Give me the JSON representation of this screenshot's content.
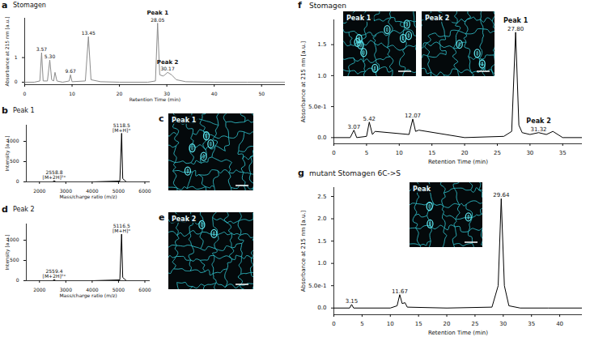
{
  "chart_data": [
    {
      "panel_label": "a",
      "type": "line",
      "title": "Stomagen",
      "xlabel": "Retention Time (min)",
      "ylabel": "Absorbance at 215 nm [a.u.]",
      "x": [
        0,
        2,
        3.2,
        3.57,
        3.9,
        4.8,
        5.3,
        5.7,
        6.1,
        6.4,
        6.8,
        8,
        9.4,
        9.67,
        10,
        12.8,
        13.45,
        14,
        16,
        20,
        26,
        27.6,
        28.05,
        28.5,
        29.2,
        29.6,
        30.17,
        31,
        32,
        34,
        40,
        47,
        55
      ],
      "values": [
        0,
        0,
        0.05,
        1.2,
        0.05,
        0.05,
        0.9,
        0.1,
        0.05,
        0.4,
        0.05,
        0,
        0.05,
        0.3,
        0.02,
        0.05,
        1.85,
        0.1,
        0.02,
        0,
        0,
        0.05,
        2.4,
        0.3,
        0.25,
        0.3,
        0.4,
        0.3,
        0.1,
        0.02,
        0,
        0,
        0
      ],
      "color": "#8c8c8c",
      "xlim": [
        0,
        55
      ],
      "xticks": [
        0,
        10,
        20,
        30,
        40,
        50
      ],
      "ylim": [
        -0.1,
        2.6
      ],
      "yticks": [
        0,
        1
      ],
      "annotations": [
        {
          "x": 3.57,
          "y": 1.2,
          "lines": [
            "3.57"
          ]
        },
        {
          "x": 5.3,
          "y": 0.9,
          "lines": [
            "5.30"
          ]
        },
        {
          "x": 9.67,
          "y": 0.3,
          "lines": [
            "9.67"
          ]
        },
        {
          "x": 13.45,
          "y": 1.85,
          "lines": [
            "13.45"
          ]
        },
        {
          "x": 28.05,
          "y": 2.4,
          "lines": [
            "28.05"
          ]
        },
        {
          "x": 30.17,
          "y": 0.4,
          "lines": [
            "30.17"
          ]
        }
      ],
      "peak_labels": [
        {
          "x": 28.05,
          "y": 2.4,
          "text": "Peak 1"
        },
        {
          "x": 30.17,
          "y": 0.4,
          "text": "Peak 2"
        }
      ]
    },
    {
      "panel_label": "b",
      "type": "line",
      "title": "Peak 1",
      "xlabel": "Mass/charge ratio (m/z)",
      "ylabel": "Intensity [a.u.]",
      "x": [
        1500,
        2500,
        2558.8,
        2620,
        4000,
        5050,
        5118.5,
        5160,
        5300,
        6000
      ],
      "values": [
        0,
        0,
        30,
        0,
        0,
        20,
        1200,
        80,
        0,
        0
      ],
      "color": "#000000",
      "xlim": [
        1500,
        6200
      ],
      "xticks": [
        2000,
        3000,
        4000,
        5000,
        6000
      ],
      "ylim": [
        0,
        1400
      ],
      "yticks": [
        0,
        500,
        1000
      ],
      "annotations": [
        {
          "x": 5118.5,
          "y": 1200,
          "lines": [
            "5118.5",
            "[M+H]⁺"
          ]
        },
        {
          "x": 2558.8,
          "y": 30,
          "lines": [
            "2558.8",
            "[M+2H]²⁺"
          ]
        }
      ]
    },
    {
      "panel_label": "c",
      "type": "image",
      "title": "Peak 1"
    },
    {
      "panel_label": "d",
      "type": "line",
      "title": "Peak 2",
      "xlabel": "Mass/charge ratio (m/z)",
      "ylabel": "Intensity [a.u.]",
      "x": [
        1500,
        2500,
        2559.4,
        2620,
        4000,
        5050,
        5116.5,
        5160,
        5300,
        6000
      ],
      "values": [
        0,
        0,
        25,
        0,
        0,
        20,
        1150,
        80,
        0,
        0
      ],
      "color": "#000000",
      "xlim": [
        1500,
        6200
      ],
      "xticks": [
        2000,
        3000,
        4000,
        5000,
        6000
      ],
      "ylim": [
        0,
        1400
      ],
      "yticks": [
        0,
        500,
        1000
      ],
      "annotations": [
        {
          "x": 5116.5,
          "y": 1150,
          "lines": [
            "5116.5",
            "[M+H]⁺"
          ]
        },
        {
          "x": 2559.4,
          "y": 25,
          "lines": [
            "2559.4",
            "[M+2H]²⁺"
          ]
        }
      ]
    },
    {
      "panel_label": "e",
      "type": "image",
      "title": "Peak 2"
    },
    {
      "panel_label": "f",
      "type": "line",
      "title": "Stomagen",
      "xlabel": "Retention Time (min)",
      "ylabel": "Absorbance at 215 nm [a.u.]",
      "x": [
        0,
        2.5,
        3.07,
        3.5,
        5,
        5.42,
        5.9,
        6.3,
        11.5,
        12.07,
        12.5,
        13,
        20,
        26,
        27.2,
        27.8,
        28.3,
        28.8,
        30,
        31.32,
        32.5,
        33.5,
        35,
        38
      ],
      "values": [
        0,
        0,
        0.12,
        0,
        0.02,
        0.25,
        0.05,
        0.1,
        0.05,
        0.3,
        0.1,
        0.12,
        0,
        0.02,
        0.1,
        1.7,
        0.2,
        0.08,
        0.05,
        0.08,
        0.05,
        0.1,
        0,
        0
      ],
      "color": "#000000",
      "xlim": [
        0,
        38
      ],
      "xticks": [
        0,
        5,
        10,
        15,
        20,
        25,
        30,
        35
      ],
      "ylim": [
        -0.1,
        1.9
      ],
      "yticks": [
        {
          "value": 0,
          "label": "0.0"
        },
        {
          "value": 0.5,
          "label": "5.0e-1"
        },
        {
          "value": 1,
          "label": "1.0"
        },
        1.5
      ],
      "annotations": [
        {
          "x": 3.07,
          "y": 0.12,
          "lines": [
            "3.07"
          ]
        },
        {
          "x": 5.42,
          "y": 0.25,
          "lines": [
            "5.42"
          ]
        },
        {
          "x": 12.07,
          "y": 0.3,
          "lines": [
            "12.07"
          ]
        },
        {
          "x": 27.8,
          "y": 1.7,
          "lines": [
            "27.80"
          ]
        },
        {
          "x": 31.32,
          "y": 0.08,
          "lines": [
            "31.32"
          ]
        }
      ],
      "peak_labels": [
        {
          "x": 27.8,
          "y": 1.7,
          "text": "Peak 1"
        },
        {
          "x": 31.32,
          "y": 0.08,
          "text": "Peak 2"
        }
      ],
      "insets": [
        {
          "title": "Peak 1"
        },
        {
          "title": "Peak 2"
        }
      ]
    },
    {
      "panel_label": "g",
      "type": "line",
      "title": "mutant Stomagen 6C->S",
      "xlabel": "Retention Time (min)",
      "ylabel": "Absorbance at 215 nm [a.u.]",
      "x": [
        0,
        2.8,
        3.15,
        3.5,
        10,
        11.2,
        11.67,
        12.1,
        12.6,
        13,
        20,
        28,
        29.1,
        29.64,
        30.2,
        31,
        33,
        38,
        44
      ],
      "values": [
        0,
        0,
        0.08,
        0,
        0,
        0.05,
        0.3,
        0.1,
        0.12,
        0.02,
        0,
        0.02,
        0.5,
        2.45,
        0.5,
        0.05,
        0,
        0,
        0
      ],
      "color": "#000000",
      "xlim": [
        0,
        44
      ],
      "xticks": [
        0,
        5,
        10,
        15,
        20,
        25,
        30,
        35,
        40
      ],
      "ylim": [
        -0.15,
        2.7
      ],
      "yticks": [
        {
          "value": 0,
          "label": "0.0"
        },
        {
          "value": 0.5,
          "label": "5.0e-1"
        },
        {
          "value": 1,
          "label": "1.0"
        },
        1.5,
        {
          "value": 2,
          "label": "2.0"
        },
        2.5
      ],
      "annotations": [
        {
          "x": 3.15,
          "y": 0.08,
          "lines": [
            "3.15"
          ]
        },
        {
          "x": 11.67,
          "y": 0.3,
          "lines": [
            "11.67"
          ]
        },
        {
          "x": 29.64,
          "y": 2.45,
          "lines": [
            "29.64"
          ]
        }
      ],
      "insets": [
        {
          "title": "Peak"
        }
      ]
    }
  ]
}
